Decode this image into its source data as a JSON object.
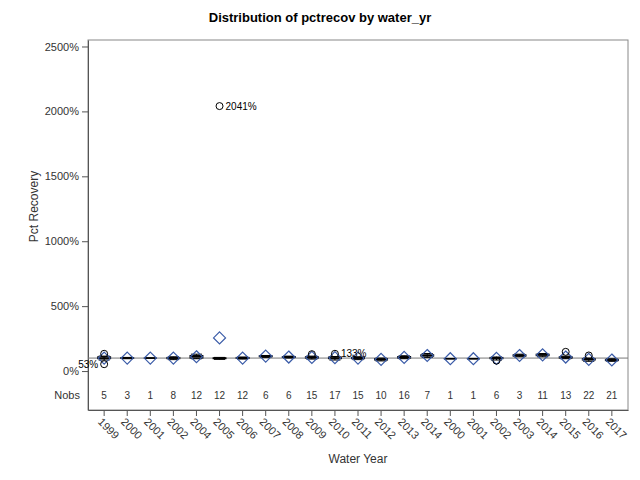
{
  "chart_data": {
    "type": "box",
    "title": "Distribution of pctrecov by water_yr",
    "x_label": "Water Year",
    "y_label": "Pct Recovery",
    "categories": [
      "1999",
      "2000",
      "2001",
      "2002",
      "2004",
      "2005",
      "2006",
      "2007",
      "2008",
      "2009",
      "2010",
      "2011",
      "2012",
      "2013",
      "2014",
      "2000",
      "2001",
      "2002",
      "2003",
      "2014",
      "2015",
      "2016",
      "2017"
    ],
    "min": [
      85,
      95,
      100,
      88,
      95,
      90,
      92,
      105,
      100,
      92,
      85,
      88,
      78,
      95,
      105,
      95,
      95,
      85,
      110,
      110,
      95,
      75,
      75
    ],
    "q1": [
      95,
      98,
      100,
      95,
      100,
      95,
      97,
      110,
      105,
      100,
      95,
      95,
      85,
      100,
      115,
      95,
      95,
      95,
      115,
      118,
      100,
      85,
      80
    ],
    "median": [
      100,
      100,
      100,
      100,
      110,
      98,
      100,
      115,
      108,
      105,
      100,
      100,
      90,
      105,
      120,
      95,
      95,
      100,
      120,
      125,
      105,
      90,
      85
    ],
    "q3": [
      110,
      103,
      100,
      105,
      120,
      102,
      105,
      118,
      112,
      110,
      108,
      105,
      95,
      112,
      125,
      95,
      95,
      105,
      125,
      130,
      110,
      95,
      90
    ],
    "max": [
      115,
      105,
      100,
      110,
      130,
      105,
      108,
      120,
      115,
      115,
      112,
      110,
      100,
      118,
      135,
      95,
      95,
      108,
      130,
      135,
      115,
      100,
      95
    ],
    "mean": [
      100,
      100,
      100,
      100,
      110,
      255,
      100,
      115,
      108,
      105,
      103,
      100,
      90,
      105,
      120,
      95,
      95,
      98,
      120,
      125,
      108,
      90,
      85
    ],
    "outliers": [
      [
        133,
        53
      ],
      [],
      [],
      [],
      [],
      [
        2041
      ],
      [],
      [],
      [],
      [
        130
      ],
      [
        133
      ],
      [],
      [],
      [],
      [],
      [],
      [],
      [
        80
      ],
      [],
      [],
      [
        148
      ],
      [
        120
      ],
      []
    ],
    "nobs_label": "Nobs",
    "nobs": [
      5,
      3,
      1,
      8,
      12,
      12,
      12,
      6,
      6,
      15,
      17,
      15,
      10,
      16,
      7,
      1,
      1,
      6,
      3,
      11,
      13,
      22,
      21
    ],
    "annotations": [
      {
        "text": "2041%",
        "x": 5,
        "y": 2041
      },
      {
        "text": "133%",
        "x": 10,
        "y": 133
      },
      {
        "text": "53%",
        "x": 0,
        "y": 53
      }
    ],
    "reference_line": 100,
    "color": "#3b5ca8",
    "ylim": [
      -300,
      2550
    ],
    "yticks": [
      {
        "value": 0,
        "label": "0%"
      },
      {
        "value": 500,
        "label": "500%"
      },
      {
        "value": 1000,
        "label": "1000%"
      },
      {
        "value": 1500,
        "label": "1500%"
      },
      {
        "value": 2000,
        "label": "2000%"
      },
      {
        "value": 2500,
        "label": "2500%"
      }
    ],
    "grid": false
  }
}
